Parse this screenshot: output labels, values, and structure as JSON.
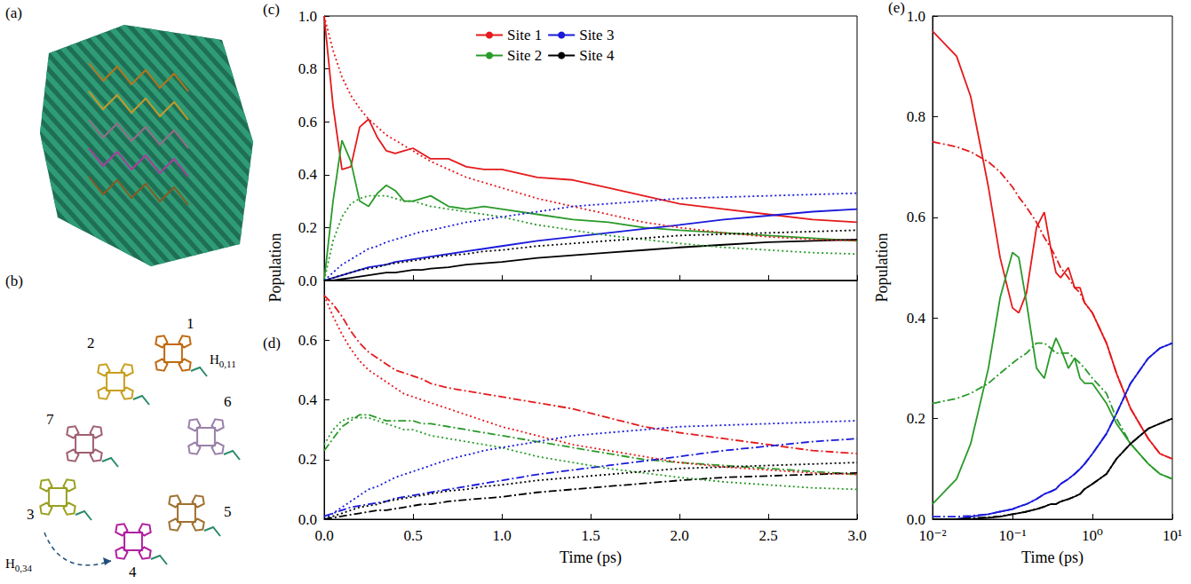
{
  "diagram": {
    "panel_a": {
      "letter": "(a)"
    },
    "panel_b": {
      "letter": "(b)",
      "sites": [
        "1",
        "2",
        "3",
        "4",
        "5",
        "6",
        "7"
      ],
      "couplings": [
        {
          "base": "H",
          "sub": "0,11"
        },
        {
          "base": "H",
          "sub": "0,34"
        }
      ]
    }
  },
  "chart_data": [
    {
      "type": "line",
      "title": "(c)",
      "ylabel": "Population",
      "x": [
        0,
        0.05,
        0.1,
        0.15,
        0.2,
        0.25,
        0.3,
        0.35,
        0.4,
        0.45,
        0.5,
        0.55,
        0.6,
        0.7,
        0.8,
        0.9,
        1.0,
        1.2,
        1.4,
        1.6,
        1.8,
        2.0,
        2.25,
        2.5,
        2.75,
        3.0
      ],
      "xlim": [
        0,
        3
      ],
      "xticks": [
        {
          "value": 0,
          "label": "0.0"
        },
        {
          "value": 0.5,
          "label": "0.5"
        },
        {
          "value": 1,
          "label": "1.0"
        },
        {
          "value": 1.5,
          "label": "1.5"
        },
        {
          "value": 2,
          "label": "2.0"
        },
        {
          "value": 2.5,
          "label": "2.5"
        },
        {
          "value": 3,
          "label": "3.0"
        }
      ],
      "ylim": [
        0,
        1
      ],
      "yticks": [
        {
          "value": 0,
          "label": "0.0"
        },
        {
          "value": 0.2,
          "label": "0.2"
        },
        {
          "value": 0.4,
          "label": "0.4"
        },
        {
          "value": 0.6,
          "label": "0.6"
        },
        {
          "value": 0.8,
          "label": "0.8"
        },
        {
          "value": 1,
          "label": "1.0"
        }
      ],
      "tick_labels": "y",
      "grid": false,
      "legend": "upper center",
      "series": [
        {
          "name": "Site 1",
          "color": "#e41a1c",
          "line_style": "solid",
          "values": [
            1.0,
            0.66,
            0.42,
            0.43,
            0.58,
            0.61,
            0.54,
            0.49,
            0.48,
            0.49,
            0.5,
            0.48,
            0.46,
            0.46,
            0.43,
            0.42,
            0.42,
            0.39,
            0.38,
            0.35,
            0.32,
            0.29,
            0.27,
            0.25,
            0.23,
            0.22
          ]
        },
        {
          "name": "Site 2",
          "color": "#2a9a2a",
          "line_style": "solid",
          "values": [
            0,
            0.3,
            0.53,
            0.45,
            0.3,
            0.28,
            0.33,
            0.36,
            0.34,
            0.3,
            0.3,
            0.31,
            0.32,
            0.28,
            0.27,
            0.28,
            0.27,
            0.25,
            0.23,
            0.22,
            0.2,
            0.19,
            0.18,
            0.17,
            0.16,
            0.15
          ]
        },
        {
          "name": "Site 3",
          "color": "#1a1adb",
          "line_style": "solid",
          "values": [
            0,
            0.01,
            0.02,
            0.03,
            0.04,
            0.05,
            0.055,
            0.06,
            0.07,
            0.075,
            0.08,
            0.085,
            0.09,
            0.1,
            0.11,
            0.12,
            0.13,
            0.15,
            0.165,
            0.18,
            0.195,
            0.21,
            0.23,
            0.245,
            0.26,
            0.27
          ]
        },
        {
          "name": "Site 4",
          "color": "#000000",
          "line_style": "solid",
          "values": [
            0,
            0,
            0.005,
            0.01,
            0.015,
            0.02,
            0.025,
            0.03,
            0.03,
            0.035,
            0.04,
            0.04,
            0.045,
            0.05,
            0.06,
            0.065,
            0.07,
            0.085,
            0.095,
            0.105,
            0.115,
            0.125,
            0.135,
            0.145,
            0.15,
            0.155
          ]
        },
        {
          "color": "#e41a1c",
          "line_style": "dotted",
          "values": [
            1.0,
            0.87,
            0.77,
            0.7,
            0.65,
            0.61,
            0.58,
            0.55,
            0.53,
            0.51,
            0.49,
            0.47,
            0.45,
            0.42,
            0.39,
            0.37,
            0.35,
            0.31,
            0.28,
            0.25,
            0.22,
            0.2,
            0.18,
            0.165,
            0.155,
            0.15
          ]
        },
        {
          "color": "#2a9a2a",
          "line_style": "dotted",
          "values": [
            0,
            0.15,
            0.24,
            0.29,
            0.31,
            0.32,
            0.32,
            0.32,
            0.31,
            0.3,
            0.3,
            0.29,
            0.28,
            0.27,
            0.26,
            0.25,
            0.24,
            0.21,
            0.19,
            0.17,
            0.155,
            0.14,
            0.125,
            0.115,
            0.105,
            0.1
          ]
        },
        {
          "color": "#1a1adb",
          "line_style": "dotted",
          "values": [
            0,
            0.03,
            0.06,
            0.08,
            0.1,
            0.12,
            0.13,
            0.145,
            0.155,
            0.165,
            0.175,
            0.185,
            0.19,
            0.205,
            0.22,
            0.23,
            0.24,
            0.26,
            0.28,
            0.29,
            0.3,
            0.31,
            0.315,
            0.32,
            0.325,
            0.33
          ]
        },
        {
          "color": "#000000",
          "line_style": "dotted",
          "values": [
            0,
            0.01,
            0.02,
            0.03,
            0.04,
            0.045,
            0.05,
            0.06,
            0.065,
            0.07,
            0.075,
            0.08,
            0.085,
            0.095,
            0.1,
            0.11,
            0.115,
            0.13,
            0.14,
            0.15,
            0.16,
            0.17,
            0.175,
            0.18,
            0.185,
            0.19
          ]
        }
      ]
    },
    {
      "type": "line",
      "title": "(d)",
      "xlabel": "Time (ps)",
      "x": [
        0,
        0.05,
        0.1,
        0.15,
        0.2,
        0.25,
        0.3,
        0.35,
        0.4,
        0.45,
        0.5,
        0.55,
        0.6,
        0.7,
        0.8,
        0.9,
        1.0,
        1.2,
        1.4,
        1.6,
        1.8,
        2.0,
        2.25,
        2.5,
        2.75,
        3.0
      ],
      "xlim": [
        0,
        3
      ],
      "xticks": [
        {
          "value": 0,
          "label": "0.0"
        },
        {
          "value": 0.5,
          "label": "0.5"
        },
        {
          "value": 1,
          "label": "1.0"
        },
        {
          "value": 1.5,
          "label": "1.5"
        },
        {
          "value": 2,
          "label": "2.0"
        },
        {
          "value": 2.5,
          "label": "2.5"
        },
        {
          "value": 3,
          "label": "3.0"
        }
      ],
      "ylim": [
        0,
        0.8
      ],
      "yticks": [
        {
          "value": 0,
          "label": "0.0"
        },
        {
          "value": 0.2,
          "label": "0.2"
        },
        {
          "value": 0.4,
          "label": "0.4"
        },
        {
          "value": 0.6,
          "label": "0.6"
        }
      ],
      "grid": false,
      "series": [
        {
          "color": "#e41a1c",
          "line_style": "dashdot",
          "values": [
            0.75,
            0.72,
            0.68,
            0.63,
            0.59,
            0.56,
            0.54,
            0.52,
            0.5,
            0.49,
            0.48,
            0.47,
            0.455,
            0.44,
            0.43,
            0.42,
            0.41,
            0.39,
            0.37,
            0.34,
            0.31,
            0.29,
            0.27,
            0.25,
            0.23,
            0.22
          ]
        },
        {
          "color": "#2a9a2a",
          "line_style": "dashdot",
          "values": [
            0.23,
            0.27,
            0.31,
            0.33,
            0.35,
            0.35,
            0.34,
            0.33,
            0.33,
            0.33,
            0.33,
            0.32,
            0.32,
            0.31,
            0.3,
            0.29,
            0.28,
            0.26,
            0.24,
            0.22,
            0.2,
            0.19,
            0.18,
            0.17,
            0.16,
            0.15
          ]
        },
        {
          "color": "#1a1adb",
          "line_style": "dashdot",
          "values": [
            0.01,
            0.02,
            0.03,
            0.04,
            0.045,
            0.05,
            0.055,
            0.06,
            0.07,
            0.075,
            0.08,
            0.085,
            0.09,
            0.1,
            0.11,
            0.12,
            0.13,
            0.15,
            0.165,
            0.18,
            0.195,
            0.21,
            0.23,
            0.245,
            0.26,
            0.27
          ]
        },
        {
          "color": "#000000",
          "line_style": "dashdot",
          "values": [
            0,
            0.005,
            0.01,
            0.015,
            0.02,
            0.025,
            0.03,
            0.03,
            0.035,
            0.04,
            0.045,
            0.05,
            0.05,
            0.06,
            0.065,
            0.07,
            0.075,
            0.09,
            0.1,
            0.11,
            0.12,
            0.13,
            0.14,
            0.145,
            0.15,
            0.155
          ]
        },
        {
          "color": "#e41a1c",
          "line_style": "dotted",
          "values": [
            0.75,
            0.68,
            0.62,
            0.57,
            0.53,
            0.5,
            0.48,
            0.46,
            0.44,
            0.42,
            0.41,
            0.4,
            0.39,
            0.37,
            0.35,
            0.33,
            0.31,
            0.28,
            0.25,
            0.23,
            0.21,
            0.19,
            0.175,
            0.165,
            0.155,
            0.15
          ]
        },
        {
          "color": "#2a9a2a",
          "line_style": "dotted",
          "values": [
            0.25,
            0.3,
            0.33,
            0.34,
            0.34,
            0.34,
            0.33,
            0.32,
            0.31,
            0.3,
            0.3,
            0.29,
            0.28,
            0.27,
            0.26,
            0.25,
            0.24,
            0.21,
            0.19,
            0.17,
            0.155,
            0.14,
            0.125,
            0.115,
            0.105,
            0.1
          ]
        },
        {
          "color": "#1a1adb",
          "line_style": "dotted",
          "values": [
            0,
            0.02,
            0.04,
            0.06,
            0.08,
            0.1,
            0.11,
            0.125,
            0.14,
            0.15,
            0.16,
            0.17,
            0.18,
            0.2,
            0.215,
            0.23,
            0.24,
            0.26,
            0.28,
            0.29,
            0.3,
            0.31,
            0.315,
            0.32,
            0.325,
            0.33
          ]
        },
        {
          "color": "#000000",
          "line_style": "dotted",
          "values": [
            0,
            0.01,
            0.02,
            0.03,
            0.04,
            0.045,
            0.05,
            0.06,
            0.065,
            0.07,
            0.075,
            0.08,
            0.085,
            0.095,
            0.1,
            0.11,
            0.115,
            0.13,
            0.14,
            0.15,
            0.16,
            0.17,
            0.175,
            0.18,
            0.185,
            0.19
          ]
        }
      ]
    },
    {
      "type": "line",
      "title": "(e)",
      "xlabel": "Time (ps)",
      "ylabel": "Population",
      "log": "x",
      "x": [
        0.01,
        0.02,
        0.03,
        0.05,
        0.07,
        0.1,
        0.12,
        0.15,
        0.2,
        0.25,
        0.3,
        0.35,
        0.4,
        0.5,
        0.6,
        0.7,
        0.8,
        1,
        1.5,
        2,
        3,
        5,
        7,
        10
      ],
      "xlim": [
        0.01,
        10
      ],
      "xticks": [
        {
          "value": 0.01,
          "label": "10⁻²"
        },
        {
          "value": 0.1,
          "label": "10⁻¹"
        },
        {
          "value": 1,
          "label": "10⁰"
        },
        {
          "value": 10,
          "label": "10¹"
        }
      ],
      "ylim": [
        0,
        1
      ],
      "yticks": [
        {
          "value": 0,
          "label": "0.0"
        },
        {
          "value": 0.2,
          "label": "0.2"
        },
        {
          "value": 0.4,
          "label": "0.4"
        },
        {
          "value": 0.6,
          "label": "0.6"
        },
        {
          "value": 0.8,
          "label": "0.8"
        },
        {
          "value": 1,
          "label": "1.0"
        }
      ],
      "grid": false,
      "series": [
        {
          "color": "#e41a1c",
          "line_style": "solid",
          "values": [
            0.97,
            0.92,
            0.84,
            0.66,
            0.52,
            0.42,
            0.41,
            0.45,
            0.58,
            0.61,
            0.54,
            0.49,
            0.48,
            0.5,
            0.46,
            0.46,
            0.43,
            0.41,
            0.35,
            0.29,
            0.22,
            0.16,
            0.13,
            0.12
          ]
        },
        {
          "color": "#2a9a2a",
          "line_style": "solid",
          "values": [
            0.03,
            0.08,
            0.15,
            0.3,
            0.44,
            0.53,
            0.52,
            0.43,
            0.3,
            0.28,
            0.33,
            0.36,
            0.34,
            0.3,
            0.32,
            0.28,
            0.27,
            0.27,
            0.23,
            0.19,
            0.15,
            0.11,
            0.09,
            0.08
          ]
        },
        {
          "color": "#1a1adb",
          "line_style": "solid",
          "values": [
            0,
            0,
            0.005,
            0.01,
            0.015,
            0.02,
            0.025,
            0.03,
            0.04,
            0.05,
            0.055,
            0.06,
            0.07,
            0.08,
            0.09,
            0.1,
            0.11,
            0.13,
            0.17,
            0.21,
            0.27,
            0.32,
            0.34,
            0.35
          ]
        },
        {
          "color": "#000000",
          "line_style": "solid",
          "values": [
            0,
            0,
            0,
            0.003,
            0.005,
            0.01,
            0.012,
            0.015,
            0.02,
            0.025,
            0.03,
            0.03,
            0.035,
            0.04,
            0.045,
            0.05,
            0.06,
            0.07,
            0.09,
            0.12,
            0.15,
            0.18,
            0.19,
            0.2
          ]
        },
        {
          "color": "#e41a1c",
          "line_style": "dashdot",
          "values": [
            0.75,
            0.74,
            0.73,
            0.71,
            0.69,
            0.66,
            0.64,
            0.62,
            0.59,
            0.56,
            0.54,
            0.52,
            0.5,
            0.48,
            0.46,
            0.45,
            0.43,
            0.41,
            0.35,
            0.29,
            0.22,
            0.16,
            0.13,
            0.12
          ]
        },
        {
          "color": "#2a9a2a",
          "line_style": "dashdot",
          "values": [
            0.23,
            0.24,
            0.25,
            0.27,
            0.29,
            0.31,
            0.32,
            0.33,
            0.35,
            0.35,
            0.34,
            0.33,
            0.33,
            0.33,
            0.32,
            0.31,
            0.3,
            0.28,
            0.25,
            0.2,
            0.15,
            0.11,
            0.09,
            0.08
          ]
        },
        {
          "color": "#1a1adb",
          "line_style": "dashdot",
          "values": [
            0.005,
            0.005,
            0.007,
            0.01,
            0.015,
            0.02,
            0.025,
            0.03,
            0.04,
            0.05,
            0.055,
            0.06,
            0.07,
            0.08,
            0.09,
            0.1,
            0.11,
            0.13,
            0.17,
            0.21,
            0.27,
            0.32,
            0.34,
            0.35
          ]
        },
        {
          "color": "#000000",
          "line_style": "dashdot",
          "values": [
            0,
            0,
            0.002,
            0.004,
            0.006,
            0.01,
            0.012,
            0.015,
            0.02,
            0.025,
            0.03,
            0.03,
            0.035,
            0.04,
            0.045,
            0.05,
            0.06,
            0.07,
            0.09,
            0.12,
            0.15,
            0.18,
            0.19,
            0.2
          ]
        }
      ]
    }
  ]
}
